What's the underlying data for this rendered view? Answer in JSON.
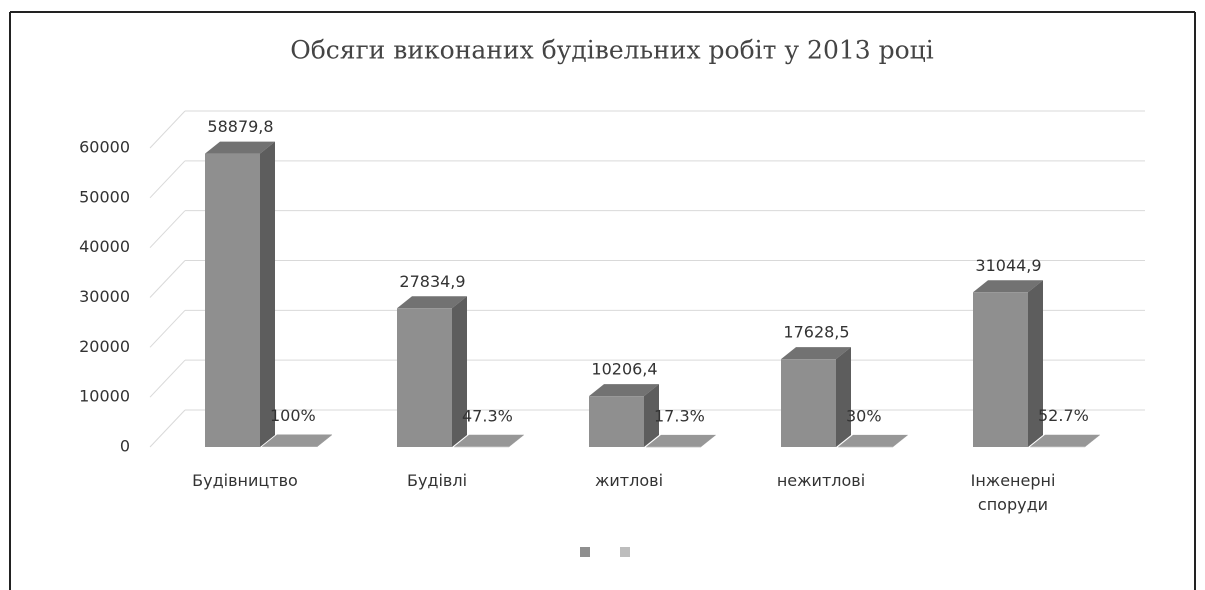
{
  "chart_data": {
    "type": "bar3d",
    "title": "Обсяги виконаних будівельних робіт у 2013 році",
    "categories": [
      "Будівництво",
      "Будівлі",
      "житлові",
      "нежитлові",
      "Інженерні споруди"
    ],
    "series": [
      {
        "color": "#8f8f8f",
        "values": [
          58879.8,
          27834.9,
          10206.4,
          17628.5,
          31044.9
        ],
        "value_labels": [
          "58879,8",
          "27834,9",
          "10206,4",
          "17628,5",
          "31044,9"
        ]
      },
      {
        "color": "#bdbdbd",
        "values": [
          100,
          47.3,
          17.3,
          30,
          52.7
        ],
        "value_labels": [
          "100%",
          "47.3%",
          "17.3%",
          "30%",
          "52.7%"
        ]
      }
    ],
    "ylim": [
      0,
      60000
    ],
    "yticks": [
      0,
      10000,
      20000,
      30000,
      40000,
      50000,
      60000
    ],
    "grid": true,
    "legend": "bottom"
  }
}
